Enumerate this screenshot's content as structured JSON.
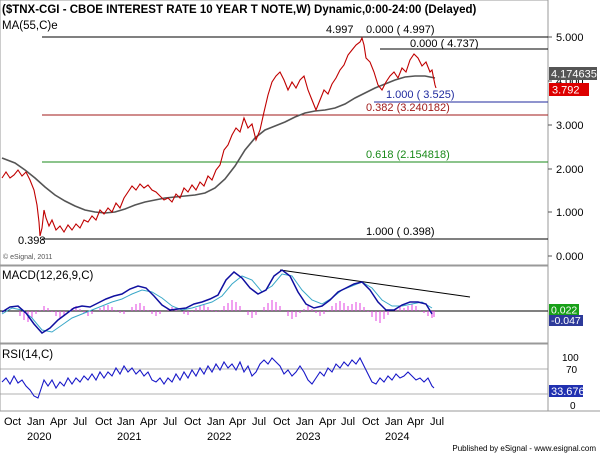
{
  "header": {
    "title": "($TNX-CGI - CBOE INTEREST RATE 10 YEAR T NOTE,W) Dynamic,0:00-24:00 (Delayed)",
    "ma_label": "MA(55,C)e",
    "copyright": "© eSignal, 2011"
  },
  "price_panel": {
    "y_axis_labels": [
      "5.000",
      "4.000",
      "3.000",
      "2.000",
      "1.000",
      "0.000"
    ],
    "current_price_label": "4.174635",
    "last_price_label": "3.792",
    "high_label": "4.997",
    "low_label": "0.398",
    "fib_levels": [
      {
        "label": "0.000 ( 4.997)",
        "value": 4.997,
        "color": "#000000"
      },
      {
        "label": "0.000 ( 4.737)",
        "value": 4.737,
        "color": "#000000"
      },
      {
        "label": "1.000 ( 3.525)",
        "value": 3.525,
        "color": "#1f2a9e"
      },
      {
        "label": "0.382 (3.240182)",
        "value": 3.240182,
        "color": "#a01a1a"
      },
      {
        "label": "0.618 (2.154818)",
        "value": 2.154818,
        "color": "#1a8a1a"
      },
      {
        "label": "1.000 ( 0.398)",
        "value": 0.398,
        "color": "#000000"
      }
    ]
  },
  "macd_panel": {
    "label": "MACD(12,26,9,C)",
    "macd_value_label": "0.022",
    "signal_value_label": "-0.047"
  },
  "rsi_panel": {
    "label": "RSI(14,C)",
    "y_axis_labels": [
      "100",
      "70",
      "30",
      "0"
    ],
    "value_label": "33.676"
  },
  "x_axis": {
    "months": [
      "Oct",
      "Jan",
      "Apr",
      "Jul",
      "Oct",
      "Jan",
      "Apr",
      "Jul",
      "Oct",
      "Jan",
      "Apr",
      "Jul",
      "Oct",
      "Jan",
      "Apr",
      "Jul",
      "Oct",
      "Jan",
      "Apr",
      "Jul"
    ],
    "years": [
      "2020",
      "2021",
      "2022",
      "2023",
      "2024"
    ]
  },
  "footer": {
    "published_by": "Published by eSignal - www.esignal.com"
  },
  "colors": {
    "price": "#c00000",
    "moving_average": "#555555",
    "macd_line": "#1010a0",
    "signal_line": "#3aa8c8",
    "histogram": "#e040e0",
    "rsi_line": "#1818c8",
    "current_price_badge": "#555555",
    "last_price_badge": "#dd0000",
    "macd_badge": "#18a018",
    "signal_badge": "#2d3a9a",
    "rsi_badge": "#2030b0"
  }
}
